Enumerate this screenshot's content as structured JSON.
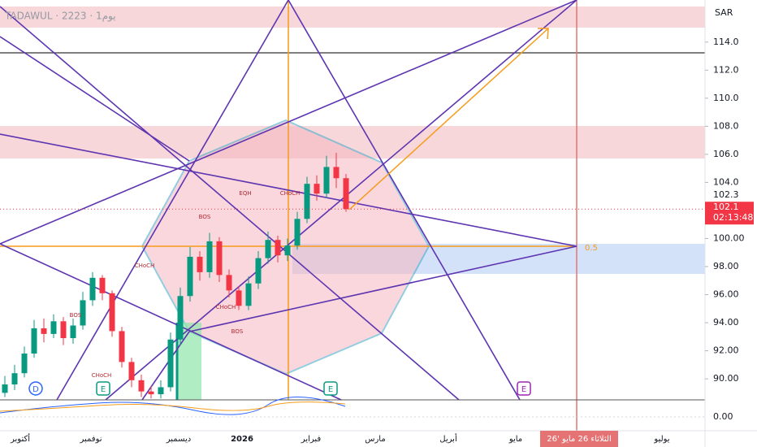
{
  "header": {
    "symbol": "TADAWUL · 2223 · 1يوم",
    "currency": "SAR"
  },
  "chart_data": {
    "type": "candlestick",
    "ylim": [
      88.5,
      117
    ],
    "yticks": [
      {
        "value": 114,
        "label": "114.0"
      },
      {
        "value": 112,
        "label": "112.0"
      },
      {
        "value": 110,
        "label": "110.0"
      },
      {
        "value": 108,
        "label": "108.0"
      },
      {
        "value": 106,
        "label": "106.0"
      },
      {
        "value": 104,
        "label": "104.0"
      },
      {
        "value": 100,
        "label": "100.00"
      },
      {
        "value": 98,
        "label": "98.00"
      },
      {
        "value": 96,
        "label": "96.00"
      },
      {
        "value": 94,
        "label": "94.00"
      },
      {
        "value": 92,
        "label": "92.00"
      },
      {
        "value": 90,
        "label": "90.00"
      }
    ],
    "open": [
      89.0,
      89.6,
      90.4,
      91.8,
      93.6,
      93.2,
      94.1,
      92.9,
      93.8,
      95.6,
      97.2,
      96.1,
      93.4,
      91.2,
      89.9,
      89.1,
      88.9,
      89.4,
      92.8,
      95.9,
      98.7,
      97.6,
      99.8,
      97.4,
      96.3,
      95.2,
      96.8,
      98.6,
      99.9,
      98.8,
      99.5,
      101.4,
      103.9,
      103.2,
      105.1,
      104.3
    ],
    "high": [
      90.2,
      91.0,
      92.3,
      94.2,
      94.3,
      94.6,
      94.4,
      94.3,
      96.2,
      97.6,
      97.4,
      96.3,
      93.7,
      91.5,
      90.3,
      89.5,
      89.9,
      93.3,
      96.5,
      99.4,
      99.1,
      100.4,
      100.1,
      97.8,
      96.6,
      97.3,
      99.1,
      100.5,
      100.2,
      100.0,
      101.9,
      104.4,
      104.5,
      105.9,
      106.1,
      104.6
    ],
    "low": [
      88.7,
      89.2,
      90.1,
      91.5,
      92.6,
      92.9,
      92.4,
      92.5,
      93.5,
      95.2,
      95.6,
      93.0,
      90.8,
      89.4,
      88.7,
      88.6,
      88.6,
      89.1,
      92.4,
      95.5,
      97.0,
      97.2,
      96.9,
      95.8,
      94.9,
      94.9,
      96.4,
      98.2,
      98.3,
      98.4,
      99.2,
      101.1,
      102.7,
      102.9,
      103.6,
      101.9
    ],
    "close": [
      89.6,
      90.4,
      91.8,
      93.6,
      93.2,
      94.1,
      92.9,
      93.8,
      95.6,
      97.2,
      96.1,
      93.4,
      91.2,
      89.9,
      89.1,
      88.9,
      89.4,
      92.8,
      95.9,
      98.7,
      97.6,
      99.8,
      97.4,
      96.3,
      95.2,
      96.8,
      98.6,
      99.9,
      98.8,
      99.5,
      101.4,
      103.9,
      103.2,
      105.1,
      104.3,
      102.1
    ],
    "up_color": "#089981",
    "down_color": "#f23645",
    "last_price": {
      "value": 102.1,
      "countdown": "02:13:48"
    },
    "marker_price": 102.3,
    "fib_label": "0.5",
    "x_labels": [
      "أكتوبر",
      "نوفمبر",
      "ديسمبر",
      "2026",
      "فبراير",
      "مارس",
      "أبريل",
      "مايو",
      "يوليو"
    ],
    "crosshair_date": "الثلاثاء 26 مايو '26",
    "annotations": [
      "BOS",
      "CHoCH",
      "EQH",
      "CHoCH",
      "BOS",
      "CHoCH",
      "CHoCH",
      "BOS"
    ],
    "markers": [
      "D",
      "E",
      "E",
      "E"
    ],
    "indicator": {
      "yticks": [
        {
          "value": 0,
          "label": "0.00"
        }
      ]
    }
  }
}
